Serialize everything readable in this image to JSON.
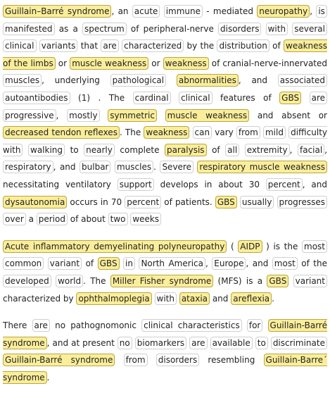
{
  "document": {
    "paragraphs": [
      {
        "tokens": [
          {
            "t": "Guillain–Barré syndrome",
            "hl": true
          },
          {
            "t": ", "
          },
          {
            "t": "an"
          },
          {
            "t": " "
          },
          {
            "t": "acute",
            "b": true
          },
          {
            "t": " "
          },
          {
            "t": "immune",
            "b": true
          },
          {
            "t": " - "
          },
          {
            "t": "mediated"
          },
          {
            "t": " "
          },
          {
            "t": "neuropathy",
            "hl": true
          },
          {
            "t": ", "
          },
          {
            "t": "is",
            "b": true
          },
          {
            "t": " "
          },
          {
            "t": "manifested",
            "b": true
          },
          {
            "t": " as a "
          },
          {
            "t": "spectrum",
            "b": true
          },
          {
            "t": " of peripheral-nerve "
          },
          {
            "t": "disorders",
            "b": true
          },
          {
            "t": " "
          },
          {
            "t": "with",
            "b": true
          },
          {
            "t": " "
          },
          {
            "t": "several",
            "b": true
          },
          {
            "t": " "
          },
          {
            "t": "clinical",
            "b": true
          },
          {
            "t": " "
          },
          {
            "t": "variants",
            "b": true
          },
          {
            "t": " that "
          },
          {
            "t": "are",
            "b": true
          },
          {
            "t": " "
          },
          {
            "t": "characterized",
            "b": true
          },
          {
            "t": " by the "
          },
          {
            "t": "distribution",
            "b": true
          },
          {
            "t": " of "
          },
          {
            "t": "weakness of the limbs",
            "hl": true
          },
          {
            "t": " or "
          },
          {
            "t": "muscle weakness",
            "hl": true
          },
          {
            "t": " or "
          },
          {
            "t": "weakness",
            "hl": true
          },
          {
            "t": " of cranial-nerve-innervated "
          },
          {
            "t": "muscles",
            "b": true
          },
          {
            "t": ", underlying "
          },
          {
            "t": "pathological",
            "b": true
          },
          {
            "t": " "
          },
          {
            "t": "abnormalities",
            "hl": true
          },
          {
            "t": ", and "
          },
          {
            "t": "associated",
            "b": true
          },
          {
            "t": " "
          },
          {
            "t": "autoantibodies",
            "b": true
          },
          {
            "t": " (1) . The "
          },
          {
            "t": "cardinal",
            "b": true
          },
          {
            "t": " "
          },
          {
            "t": "clinical",
            "b": true
          },
          {
            "t": " features of "
          },
          {
            "t": "GBS",
            "hl": true
          },
          {
            "t": " "
          },
          {
            "t": "are",
            "b": true
          },
          {
            "t": " "
          },
          {
            "t": "progressive",
            "b": true
          },
          {
            "t": ", "
          },
          {
            "t": "mostly",
            "b": true
          },
          {
            "t": " "
          },
          {
            "t": "symmetric",
            "hl": true
          },
          {
            "t": " "
          },
          {
            "t": "muscle weakness",
            "hl": true
          },
          {
            "t": " and absent or "
          },
          {
            "t": "decreased tendon reflexes",
            "hl": true
          },
          {
            "t": ". The "
          },
          {
            "t": "weakness",
            "hl": true
          },
          {
            "t": " "
          },
          {
            "t": "can",
            "b": true
          },
          {
            "t": " vary "
          },
          {
            "t": "from",
            "b": true
          },
          {
            "t": " "
          },
          {
            "t": "mild",
            "b": true
          },
          {
            "t": " "
          },
          {
            "t": "difficulty with",
            "b": true
          },
          {
            "t": " "
          },
          {
            "t": "walking",
            "b": true
          },
          {
            "t": " to "
          },
          {
            "t": "nearly",
            "b": true
          },
          {
            "t": " complete "
          },
          {
            "t": "paralysis",
            "hl": true
          },
          {
            "t": " of "
          },
          {
            "t": "all",
            "b": true
          },
          {
            "t": " "
          },
          {
            "t": "extremity",
            "b": true
          },
          {
            "t": ", "
          },
          {
            "t": "facial",
            "b": true
          },
          {
            "t": ", "
          },
          {
            "t": "respiratory",
            "b": true
          },
          {
            "t": ", and "
          },
          {
            "t": "bulbar",
            "b": true
          },
          {
            "t": " "
          },
          {
            "t": "muscles",
            "b": true
          },
          {
            "t": ". "
          },
          {
            "t": "Severe",
            "b": true
          },
          {
            "t": " "
          },
          {
            "t": "respiratory muscle weakness",
            "hl": true
          },
          {
            "t": " necessitating ventilatory "
          },
          {
            "t": "support",
            "b": true
          },
          {
            "t": " "
          },
          {
            "t": "develops in about 30 "
          },
          {
            "t": "percent",
            "b": true
          },
          {
            "t": ", and "
          },
          {
            "t": "dysautonomia",
            "hl": true
          },
          {
            "t": " occurs in 70 "
          },
          {
            "t": "percent",
            "b": true
          },
          {
            "t": " "
          },
          {
            "t": "of patients. "
          },
          {
            "t": "GBS",
            "hl": true
          },
          {
            "t": " "
          },
          {
            "t": "usually",
            "b": true
          },
          {
            "t": " "
          },
          {
            "t": "progresses",
            "b": true
          },
          {
            "t": " "
          },
          {
            "t": "over",
            "b": true
          },
          {
            "t": " a "
          },
          {
            "t": "period",
            "b": true
          },
          {
            "t": " of about "
          },
          {
            "t": "two",
            "b": true
          },
          {
            "t": " "
          },
          {
            "t": "weeks",
            "b": true
          }
        ]
      },
      {
        "tokens": [
          {
            "t": "Acute inflammatory demyelinating polyneuropathy",
            "hl": true
          },
          {
            "t": " ( "
          },
          {
            "t": "AIDP",
            "hl": true
          },
          {
            "t": " ) is the "
          },
          {
            "t": "most",
            "b": true
          },
          {
            "t": " "
          },
          {
            "t": "common",
            "b": true
          },
          {
            "t": " "
          },
          {
            "t": "variant",
            "b": true
          },
          {
            "t": " of "
          },
          {
            "t": "GBS",
            "hl": true
          },
          {
            "t": " "
          },
          {
            "t": "in",
            "b": true
          },
          {
            "t": " "
          },
          {
            "t": "North America",
            "b": true
          },
          {
            "t": ", "
          },
          {
            "t": "Europe",
            "b": true
          },
          {
            "t": ", and "
          },
          {
            "t": "most",
            "b": true
          },
          {
            "t": " of the "
          },
          {
            "t": "developed",
            "b": true
          },
          {
            "t": " "
          },
          {
            "t": "world",
            "b": true
          },
          {
            "t": ". The "
          },
          {
            "t": "Miller Fisher syndrome",
            "hl": true
          },
          {
            "t": " (MFS) is a "
          },
          {
            "t": "GBS",
            "hl": true
          },
          {
            "t": " "
          },
          {
            "t": "variant",
            "b": true
          },
          {
            "t": " "
          },
          {
            "t": "characterized by "
          },
          {
            "t": "ophthalmoplegia",
            "hl": true
          },
          {
            "t": " "
          },
          {
            "t": "with",
            "b": true
          },
          {
            "t": " "
          },
          {
            "t": "ataxia",
            "hl": true
          },
          {
            "t": " and "
          },
          {
            "t": "areflexia",
            "hl": true
          },
          {
            "t": "."
          }
        ]
      },
      {
        "tokens": [
          {
            "t": "There "
          },
          {
            "t": "are",
            "b": true
          },
          {
            "t": " no pathognomonic "
          },
          {
            "t": "clinical characteristics",
            "b": true
          },
          {
            "t": " "
          },
          {
            "t": "for",
            "b": true
          },
          {
            "t": " "
          },
          {
            "t": "Guillain-Barré syndrome",
            "hl": true
          },
          {
            "t": ", and at present "
          },
          {
            "t": "no",
            "b": true
          },
          {
            "t": " "
          },
          {
            "t": "biomarkers",
            "b": true
          },
          {
            "t": " "
          },
          {
            "t": "are",
            "b": true
          },
          {
            "t": " "
          },
          {
            "t": "available",
            "b": true
          },
          {
            "t": " "
          },
          {
            "t": "to",
            "b": true
          },
          {
            "t": " "
          },
          {
            "t": "discriminate",
            "b": true
          },
          {
            "t": " "
          },
          {
            "t": "Guillain-Barré syndrome",
            "hl": true
          },
          {
            "t": " "
          },
          {
            "t": "from",
            "b": true
          },
          {
            "t": " "
          },
          {
            "t": "disorders",
            "b": true
          },
          {
            "t": " resembling "
          },
          {
            "t": "Guillain-Barre´ syndrome",
            "hl": true
          },
          {
            "t": "."
          }
        ]
      }
    ]
  }
}
